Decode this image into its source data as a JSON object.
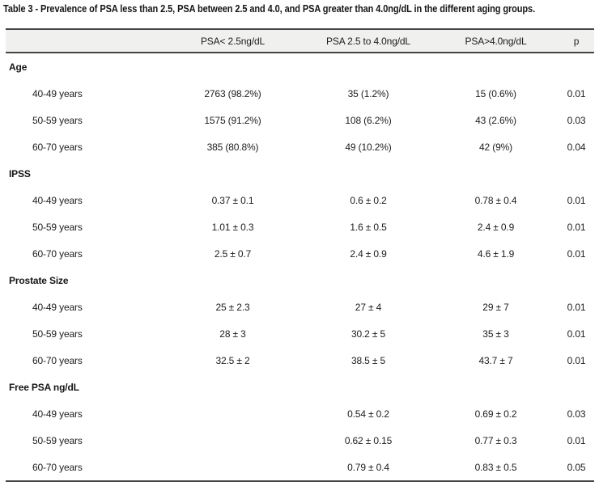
{
  "title": "Table 3 - Prevalence of PSA less than 2.5, PSA between 2.5 and 4.0, and PSA greater than 4.0ng/dL in the different aging groups.",
  "table": {
    "columns": [
      "",
      "PSA< 2.5ng/dL",
      "PSA 2.5 to 4.0ng/dL",
      "PSA>4.0ng/dL",
      "p"
    ],
    "sections": [
      {
        "label": "Age",
        "rows": [
          {
            "label": "40-49 years",
            "values": [
              "2763 (98.2%)",
              "35 (1.2%)",
              "15 (0.6%)",
              "0.01"
            ]
          },
          {
            "label": "50-59 years",
            "values": [
              "1575 (91.2%)",
              "108 (6.2%)",
              "43 (2.6%)",
              "0.03"
            ]
          },
          {
            "label": "60-70 years",
            "values": [
              "385 (80.8%)",
              "49 (10.2%)",
              "42 (9%)",
              "0.04"
            ]
          }
        ]
      },
      {
        "label": "IPSS",
        "rows": [
          {
            "label": "40-49 years",
            "values": [
              "0.37 ± 0.1",
              "0.6 ± 0.2",
              "0.78 ± 0.4",
              "0.01"
            ]
          },
          {
            "label": "50-59 years",
            "values": [
              "1.01 ± 0.3",
              "1.6 ± 0.5",
              "2.4 ± 0.9",
              "0.01"
            ]
          },
          {
            "label": "60-70 years",
            "values": [
              "2.5 ± 0.7",
              "2.4 ± 0.9",
              "4.6 ± 1.9",
              "0.01"
            ]
          }
        ]
      },
      {
        "label": "Prostate Size",
        "rows": [
          {
            "label": "40-49 years",
            "values": [
              "25 ± 2.3",
              "27 ± 4",
              "29 ± 7",
              "0.01"
            ]
          },
          {
            "label": "50-59 years",
            "values": [
              "28 ± 3",
              "30.2 ± 5",
              "35 ± 3",
              "0.01"
            ]
          },
          {
            "label": "60-70 years",
            "values": [
              "32.5 ± 2",
              "38.5 ± 5",
              "43.7 ± 7",
              "0.01"
            ]
          }
        ]
      },
      {
        "label": "Free PSA ng/dL",
        "rows": [
          {
            "label": "40-49 years",
            "values": [
              "",
              "0.54 ± 0.2",
              "0.69 ± 0.2",
              "0.03"
            ]
          },
          {
            "label": "50-59 years",
            "values": [
              "",
              "0.62 ± 0.15",
              "0.77 ± 0.3",
              "0.01"
            ]
          },
          {
            "label": "60-70 years",
            "values": [
              "",
              "0.79 ± 0.4",
              "0.83 ± 0.5",
              "0.05"
            ]
          }
        ]
      }
    ]
  },
  "colors": {
    "header_background": "#f0f0ee",
    "rule": "#454545",
    "text": "#1d1d1d"
  }
}
